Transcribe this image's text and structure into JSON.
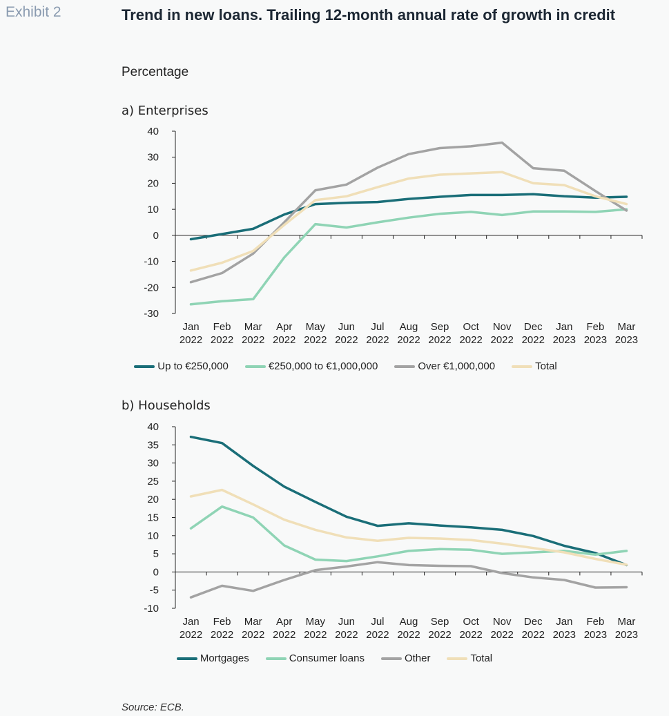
{
  "exhibit": "Exhibit 2",
  "title": "Trend in new loans. Trailing 12-month annual rate of growth in credit",
  "subtitle": "Percentage",
  "source": "Source: ECB.",
  "colors": {
    "dark_teal": "#1a6e78",
    "light_green": "#8fd4b5",
    "grey": "#a3a3a3",
    "beige": "#f0dfb8"
  },
  "chart_data": [
    {
      "type": "line",
      "title": "a) Enterprises",
      "categories": [
        "Jan 2022",
        "Feb 2022",
        "Mar 2022",
        "Apr 2022",
        "May 2022",
        "Jun 2022",
        "Jul 2022",
        "Aug 2022",
        "Sep 2022",
        "Oct 2022",
        "Nov 2022",
        "Dec 2022",
        "Jan 2023",
        "Feb 2023",
        "Mar 2023"
      ],
      "ylim": [
        -30,
        40
      ],
      "yticks": [
        40,
        30,
        20,
        10,
        0,
        -10,
        -20,
        -30
      ],
      "grid": false,
      "legend_position": "bottom",
      "series": [
        {
          "name": "Up to €250,000",
          "color": "#1a6e78",
          "values": [
            -1.5,
            0.5,
            2.5,
            8,
            12,
            12.5,
            12.8,
            14,
            14.8,
            15.5,
            15.5,
            15.8,
            15,
            14.5,
            14.8
          ]
        },
        {
          "name": "€250,000 to €1,000,000",
          "color": "#8fd4b5",
          "values": [
            -26.5,
            -25.3,
            -24.5,
            -8.5,
            4.3,
            3,
            5,
            6.8,
            8.3,
            9,
            7.8,
            9.2,
            9.2,
            9,
            10
          ]
        },
        {
          "name": "Over €1,000,000",
          "color": "#a3a3a3",
          "values": [
            -18,
            -14.5,
            -7,
            5,
            17.3,
            19.5,
            26,
            31.2,
            33.5,
            34.2,
            35.6,
            25.8,
            24.8,
            17,
            9.5
          ]
        },
        {
          "name": "Total",
          "color": "#f0dfb8",
          "values": [
            -13.5,
            -10.5,
            -6,
            4,
            13.5,
            15,
            18.5,
            21.8,
            23.3,
            23.8,
            24.3,
            20,
            19.3,
            15,
            12
          ]
        }
      ]
    },
    {
      "type": "line",
      "title": "b) Households",
      "categories": [
        "Jan 2022",
        "Feb 2022",
        "Mar 2022",
        "Apr 2022",
        "May 2022",
        "Jun 2022",
        "Jul 2022",
        "Aug 2022",
        "Sep 2022",
        "Oct 2022",
        "Nov 2022",
        "Dec 2022",
        "Jan 2023",
        "Feb 2023",
        "Mar 2023"
      ],
      "ylim": [
        -10,
        40
      ],
      "yticks": [
        40,
        35,
        30,
        25,
        20,
        15,
        10,
        5,
        0,
        -5,
        -10
      ],
      "grid": false,
      "legend_position": "bottom",
      "series": [
        {
          "name": "Mortgages",
          "color": "#1a6e78",
          "values": [
            37.2,
            35.5,
            29.2,
            23.5,
            19.3,
            15.2,
            12.7,
            13.4,
            12.8,
            12.3,
            11.6,
            9.9,
            7.2,
            5.2,
            1.9
          ]
        },
        {
          "name": "Consumer loans",
          "color": "#8fd4b5",
          "values": [
            12,
            18,
            15,
            7.3,
            3.4,
            3,
            4.3,
            5.8,
            6.3,
            6.1,
            5,
            5.4,
            5.8,
            4.8,
            5.8
          ]
        },
        {
          "name": "Other",
          "color": "#a3a3a3",
          "values": [
            -7,
            -3.8,
            -5.2,
            -2.2,
            0.5,
            1.5,
            2.7,
            1.9,
            1.7,
            1.6,
            -0.3,
            -1.5,
            -2.2,
            -4.3,
            -4.2
          ]
        },
        {
          "name": "Total",
          "color": "#f0dfb8",
          "values": [
            20.8,
            22.6,
            18.6,
            14.4,
            11.6,
            9.5,
            8.6,
            9.4,
            9.2,
            8.8,
            7.8,
            6.6,
            5.4,
            3.6,
            2
          ]
        }
      ]
    }
  ]
}
